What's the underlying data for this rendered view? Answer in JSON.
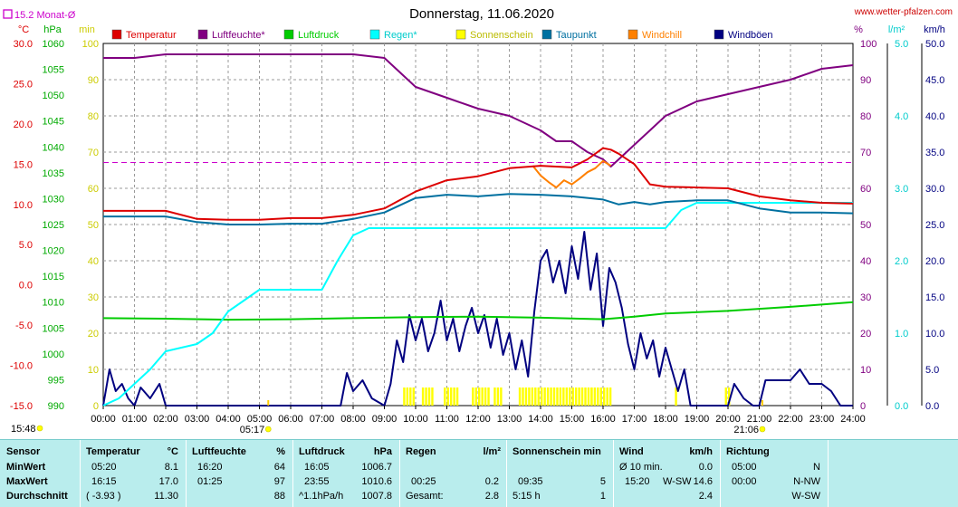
{
  "header": {
    "title": "Donnerstag, 11.06.2020",
    "site": "www.wetter-pfalzen.com",
    "month_avg": "15.2 Monat-Ø",
    "units_left": [
      "°C",
      "hPa",
      "min"
    ],
    "units_right": [
      "%",
      "l/m²",
      "km/h"
    ]
  },
  "legend": [
    {
      "label": "Temperatur",
      "color": "#dd0000"
    },
    {
      "label": "Luftfeuchte*",
      "color": "#800080"
    },
    {
      "label": "Luftdruck",
      "color": "#00cc00"
    },
    {
      "label": "Regen*",
      "color": "#00ffff"
    },
    {
      "label": "Sonnenschein",
      "color": "#ffff00"
    },
    {
      "label": "Taupunkt",
      "color": "#0070a0"
    },
    {
      "label": "Windchill",
      "color": "#ff8000"
    },
    {
      "label": "Windböen",
      "color": "#000080"
    }
  ],
  "annotations": {
    "sunrise": "05:17",
    "sunset": "21:06",
    "now": "15:48"
  },
  "chart_data": {
    "type": "line",
    "x_ticks": [
      "00:00",
      "01:00",
      "02:00",
      "03:00",
      "04:00",
      "05:00",
      "06:00",
      "07:00",
      "08:00",
      "09:00",
      "10:00",
      "11:00",
      "12:00",
      "13:00",
      "14:00",
      "15:00",
      "16:00",
      "17:00",
      "18:00",
      "19:00",
      "20:00",
      "21:00",
      "22:00",
      "23:00",
      "24:00"
    ],
    "axes": {
      "temperature": {
        "unit": "°C",
        "range": [
          -15,
          30
        ],
        "ticks": [
          "30.0",
          "25.0",
          "20.0",
          "15.0",
          "10.0",
          "5.0",
          "0.0",
          "-5.0",
          "-10.0",
          "-15.0"
        ]
      },
      "pressure": {
        "unit": "hPa",
        "range": [
          990,
          1060
        ],
        "ticks": [
          "1060",
          "1055",
          "1050",
          "1045",
          "1040",
          "1035",
          "1030",
          "1025",
          "1020",
          "1015",
          "1010",
          "1005",
          "1000",
          "995",
          "990"
        ]
      },
      "sunshine": {
        "unit": "min",
        "range": [
          0,
          100
        ],
        "ticks": [
          "100",
          "90",
          "80",
          "70",
          "60",
          "50",
          "40",
          "30",
          "20",
          "10",
          "0"
        ]
      },
      "humidity": {
        "unit": "%",
        "range": [
          0,
          100
        ],
        "ticks": [
          "100",
          "90",
          "80",
          "70",
          "60",
          "50",
          "40",
          "30",
          "20",
          "10",
          "0"
        ]
      },
      "rain": {
        "unit": "l/m²",
        "range": [
          0,
          5
        ],
        "ticks": [
          "5.0",
          "4.0",
          "3.0",
          "2.0",
          "1.0",
          "0.0"
        ]
      },
      "wind": {
        "unit": "km/h",
        "range": [
          0,
          50
        ],
        "ticks": [
          "50.0",
          "45.0",
          "40.0",
          "35.0",
          "30.0",
          "25.0",
          "20.0",
          "15.0",
          "10.0",
          "5.0",
          "0.0"
        ]
      }
    },
    "month_avg_temperature": 15.2,
    "grid": true,
    "series": [
      {
        "name": "Temperatur",
        "axis": "temperature",
        "color": "#dd0000",
        "x": [
          0,
          1,
          2,
          3,
          4,
          5,
          6,
          7,
          8,
          9,
          10,
          11,
          12,
          13,
          14,
          15,
          15.5,
          16,
          16.25,
          16.5,
          17,
          17.5,
          18,
          19,
          20,
          21,
          22,
          23,
          24
        ],
        "y": [
          9.2,
          9.2,
          9.2,
          8.2,
          8.1,
          8.1,
          8.3,
          8.3,
          8.7,
          9.5,
          11.6,
          13.0,
          13.5,
          14.5,
          14.8,
          14.6,
          15.6,
          17.0,
          16.8,
          16.3,
          15.0,
          12.5,
          12.2,
          12.1,
          12.0,
          11.0,
          10.5,
          10.2,
          10.1
        ]
      },
      {
        "name": "Luftfeuchte*",
        "axis": "humidity",
        "color": "#800080",
        "x": [
          0,
          1,
          2,
          3,
          4,
          5,
          6,
          7,
          8,
          9,
          10,
          11,
          12,
          13,
          14,
          14.5,
          15,
          15.5,
          16,
          16.25,
          16.5,
          17,
          17.5,
          18,
          19,
          20,
          21,
          22,
          23,
          24
        ],
        "y": [
          96,
          96,
          97,
          97,
          97,
          97,
          97,
          97,
          97,
          96,
          88,
          85,
          82,
          80,
          76,
          73,
          73,
          70,
          68,
          66,
          68,
          72,
          76,
          80,
          84,
          86,
          88,
          90,
          93,
          94
        ]
      },
      {
        "name": "Luftdruck",
        "axis": "pressure",
        "color": "#00cc00",
        "x": [
          0,
          2,
          4,
          6,
          8,
          10,
          12,
          14,
          16,
          17,
          18,
          20,
          22,
          24
        ],
        "y": [
          1006.9,
          1006.8,
          1006.6,
          1006.7,
          1006.9,
          1007.1,
          1007.2,
          1007.0,
          1006.7,
          1007.2,
          1007.8,
          1008.3,
          1009.1,
          1010.0
        ]
      },
      {
        "name": "Regen*",
        "axis": "rain",
        "color": "#00ffff",
        "x": [
          0,
          0.5,
          1,
          1.5,
          2,
          3,
          3.5,
          4,
          4.5,
          5,
          6,
          7,
          7.5,
          8,
          8.5,
          9,
          10,
          12,
          14,
          16,
          17,
          18,
          18.5,
          19,
          20,
          21,
          22,
          23,
          24
        ],
        "y": [
          0,
          0.1,
          0.3,
          0.5,
          0.75,
          0.85,
          1.0,
          1.3,
          1.45,
          1.6,
          1.6,
          1.6,
          2.0,
          2.35,
          2.45,
          2.45,
          2.45,
          2.45,
          2.45,
          2.45,
          2.45,
          2.45,
          2.7,
          2.8,
          2.8,
          2.8,
          2.8,
          2.8,
          2.8
        ]
      },
      {
        "name": "Taupunkt",
        "axis": "temperature",
        "color": "#0070a0",
        "x": [
          0,
          1,
          2,
          3,
          4,
          5,
          6,
          7,
          8,
          9,
          10,
          11,
          12,
          13,
          14,
          15,
          16,
          16.5,
          17,
          17.5,
          18,
          19,
          20,
          21,
          22,
          23,
          24
        ],
        "y": [
          8.5,
          8.5,
          8.5,
          7.8,
          7.5,
          7.5,
          7.6,
          7.6,
          8.2,
          9.0,
          10.8,
          11.2,
          11.0,
          11.3,
          11.2,
          11.0,
          10.6,
          10.0,
          10.3,
          10.0,
          10.3,
          10.5,
          10.5,
          9.5,
          9.0,
          9.0,
          8.9
        ]
      },
      {
        "name": "Windchill",
        "axis": "temperature",
        "color": "#ff8000",
        "x": [
          13.75,
          14,
          14.25,
          14.5,
          14.75,
          15,
          15.25,
          15.5,
          15.75,
          16,
          16.25
        ],
        "y": [
          14.8,
          13.6,
          12.8,
          12.1,
          13.0,
          12.5,
          13.2,
          14.0,
          14.5,
          15.4,
          14.8
        ]
      },
      {
        "name": "Windböen",
        "axis": "wind",
        "color": "#000080",
        "x": [
          0,
          0.2,
          0.4,
          0.6,
          0.8,
          1,
          1.2,
          1.5,
          1.8,
          2,
          2.5,
          3,
          4,
          5,
          6,
          7,
          7.6,
          7.8,
          8,
          8.3,
          8.6,
          9,
          9.2,
          9.4,
          9.6,
          9.8,
          10,
          10.2,
          10.4,
          10.6,
          10.8,
          11,
          11.2,
          11.4,
          11.6,
          11.8,
          12,
          12.2,
          12.4,
          12.6,
          12.8,
          13,
          13.2,
          13.4,
          13.6,
          13.8,
          14,
          14.2,
          14.4,
          14.6,
          14.8,
          15,
          15.2,
          15.4,
          15.6,
          15.8,
          16,
          16.2,
          16.4,
          16.6,
          16.8,
          17,
          17.2,
          17.4,
          17.6,
          17.8,
          18,
          18.2,
          18.4,
          18.6,
          18.8,
          19,
          19.5,
          20,
          20.2,
          20.5,
          20.8,
          21,
          21.2,
          21.5,
          22,
          22.3,
          22.6,
          23,
          23.3,
          23.6,
          24
        ],
        "y": [
          0,
          5,
          2,
          3,
          1,
          0,
          2.5,
          1,
          3,
          0,
          0,
          0,
          0,
          0,
          0,
          0,
          0,
          4.5,
          2,
          3.5,
          1,
          0,
          3,
          9,
          6,
          12.5,
          9,
          12,
          7.5,
          10,
          14.5,
          9,
          12,
          7.5,
          11,
          13.5,
          10,
          12.5,
          8,
          12,
          7,
          10,
          5,
          9,
          4,
          13,
          20,
          21.5,
          17,
          20,
          15.5,
          22,
          17.5,
          24,
          16,
          21,
          11,
          19,
          17,
          13.5,
          8.5,
          5,
          10,
          6.5,
          9,
          4,
          8,
          5,
          2,
          5,
          0,
          0,
          0,
          0,
          3,
          1,
          0,
          0,
          3.5,
          3.5,
          3.5,
          5,
          3,
          3,
          2,
          0,
          0
        ]
      }
    ],
    "sunshine_blocks": [
      [
        9.6,
        9.9
      ],
      [
        10.2,
        10.5
      ],
      [
        10.9,
        11.3
      ],
      [
        11.8,
        12.3
      ],
      [
        12.5,
        12.75
      ],
      [
        13.3,
        13.6
      ],
      [
        13.6,
        14.5
      ],
      [
        14.6,
        15.6
      ],
      [
        15.6,
        16.3
      ],
      [
        18.3,
        18.4
      ],
      [
        19.9,
        20.1
      ]
    ],
    "sunshine_mark_height": 5
  },
  "table": {
    "sensor": {
      "header": "Sensor",
      "rows": [
        "MinWert",
        "MaxWert",
        "Durchschnitt"
      ]
    },
    "temperatur": {
      "header": "Temperatur",
      "unit": "°C",
      "rows": [
        [
          "05:20",
          "8.1"
        ],
        [
          "16:15",
          "17.0"
        ],
        [
          "( -3.93 )",
          "11.30"
        ]
      ]
    },
    "luftfeuchte": {
      "header": "Luftfeuchte",
      "unit": "%",
      "rows": [
        [
          "16:20",
          "64"
        ],
        [
          "01:25",
          "97"
        ],
        [
          "",
          "88"
        ]
      ]
    },
    "luftdruck": {
      "header": "Luftdruck",
      "unit": "hPa",
      "rows": [
        [
          "16:05",
          "1006.7"
        ],
        [
          "23:55",
          "1010.6"
        ],
        [
          "^1.1hPa/h",
          "1007.8"
        ]
      ]
    },
    "regen": {
      "header": "Regen",
      "unit": "l/m²",
      "rows": [
        [
          "",
          ""
        ],
        [
          "00:25",
          "0.2"
        ],
        [
          "Gesamt:",
          "2.8"
        ]
      ]
    },
    "sonnenschein": {
      "header": "Sonnenschein min",
      "rows": [
        [
          "",
          ""
        ],
        [
          "09:35",
          "5"
        ],
        [
          "5:15 h",
          "1"
        ]
      ]
    },
    "wind": {
      "header": "Wind",
      "unit": "km/h",
      "rows": [
        [
          "Ø 10 min.",
          "",
          "0.0"
        ],
        [
          "15:20",
          "W-SW",
          "14.6"
        ],
        [
          "",
          "",
          "2.4"
        ]
      ]
    },
    "richtung": {
      "header": "Richtung",
      "rows": [
        [
          "05:00",
          "N"
        ],
        [
          "00:00",
          "N-NW"
        ],
        [
          "",
          "W-SW"
        ]
      ]
    }
  }
}
